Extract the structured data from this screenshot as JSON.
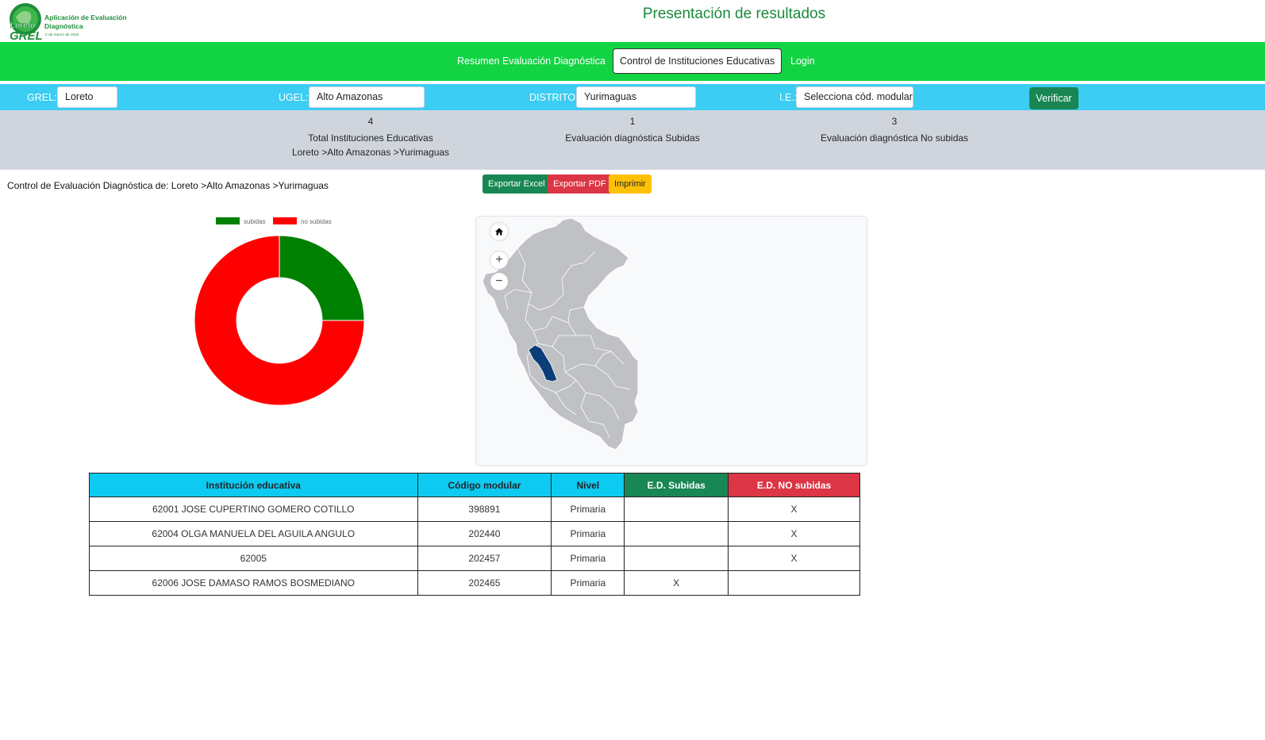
{
  "header": {
    "logo_brand": "Loreto",
    "logo_sub": "GREL",
    "logo_title_1": "Aplicación de Evaluación",
    "logo_title_2": "Diagnóstica",
    "logo_date": "2 de marzo de 2022",
    "page_title": "Presentación de resultados"
  },
  "nav": {
    "items": [
      {
        "label": "Resumen Evaluación Diagnóstica"
      },
      {
        "label": "Control de Instituciones Educativas"
      },
      {
        "label": "Login"
      }
    ]
  },
  "filters": {
    "grel_label": "GREL:",
    "grel_value": "Loreto",
    "ugel_label": "UGEL:",
    "ugel_value": "Alto Amazonas",
    "distrito_label": "DISTRITO:",
    "distrito_value": "Yurimaguas",
    "ie_label": "I.E.:",
    "ie_value": "Selecciona cód. modular",
    "verify_label": "Verificar"
  },
  "stats": {
    "total_num": "4",
    "total_label": "Total Instituciones Educativas",
    "total_path": "Loreto >Alto Amazonas >Yurimaguas",
    "subidas_num": "1",
    "subidas_label": "Evaluación diagnóstica Subidas",
    "nosubidas_num": "3",
    "nosubidas_label": "Evaluación diagnóstica No subidas"
  },
  "control": {
    "title": "Control de Evaluación Diagnóstica de: Loreto >Alto Amazonas >Yurimaguas",
    "export_excel": "Exportar Excel",
    "export_pdf": "Exportar PDF",
    "print": "Imprimir"
  },
  "chart_data": {
    "type": "pie",
    "donut": true,
    "categories": [
      "subidas",
      "no subidas"
    ],
    "values": [
      1,
      3
    ],
    "colors": [
      "#008000",
      "#ff0000"
    ],
    "legend": "top"
  },
  "map": {
    "home_icon": "home-icon",
    "zoom_in": "+",
    "zoom_out": "−",
    "highlight_color": "#0b3d79",
    "region_color": "#bfc1c4"
  },
  "table": {
    "headers": [
      "Institución educativa",
      "Código modular",
      "Nivel",
      "E.D. Subidas",
      "E.D. NO subidas"
    ],
    "rows": [
      [
        "62001 JOSE CUPERTINO GOMERO COTILLO",
        "398891",
        "Primaria",
        "",
        "X"
      ],
      [
        "62004 OLGA MANUELA DEL AGUILA ANGULO",
        "202440",
        "Primaria",
        "",
        "X"
      ],
      [
        "62005",
        "202457",
        "Primaria",
        "",
        "X"
      ],
      [
        "62006 JOSE DAMASO RAMOS BOSMEDIANO",
        "202465",
        "Primaria",
        "X",
        ""
      ]
    ]
  }
}
